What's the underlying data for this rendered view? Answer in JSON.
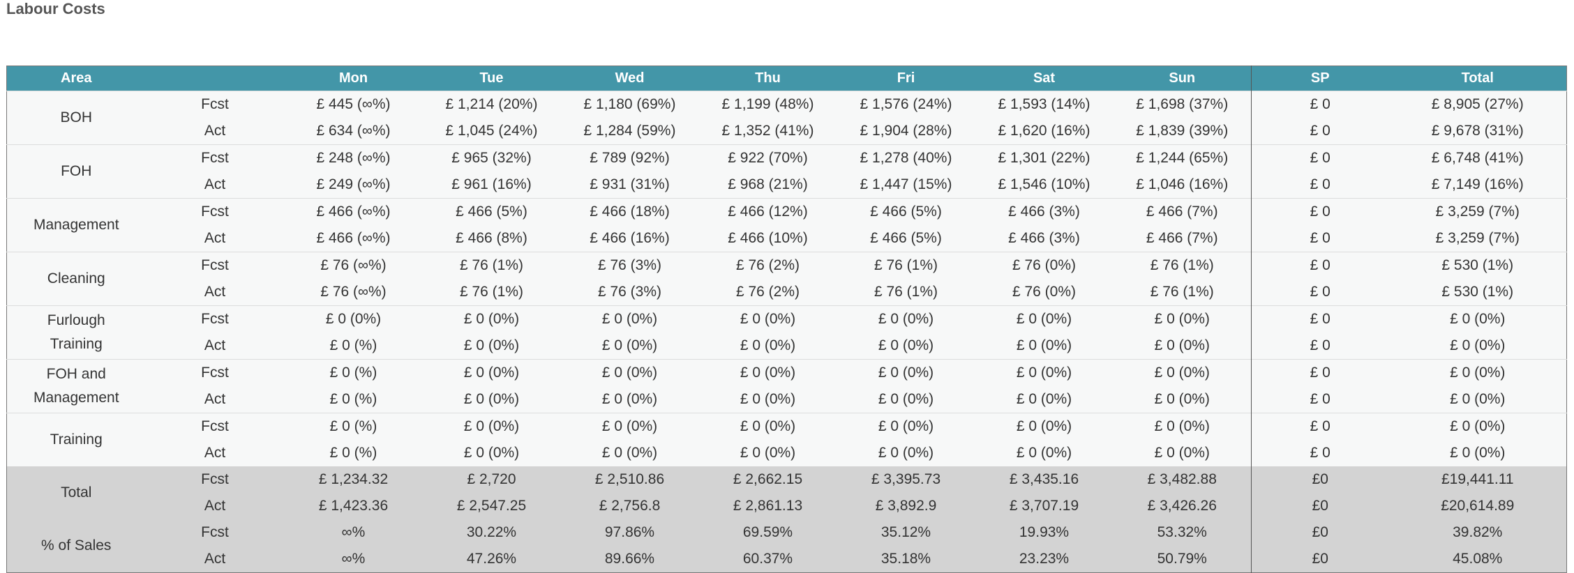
{
  "title": "Labour Costs",
  "table": {
    "header": [
      "Area",
      "Mon",
      "Tue",
      "Wed",
      "Thu",
      "Fri",
      "Sat",
      "Sun",
      "SP",
      "Total"
    ],
    "groups": [
      {
        "area": "BOH",
        "rows": [
          {
            "label": "Fcst",
            "cells": [
              "£ 445 (∞%)",
              "£ 1,214 (20%)",
              "£ 1,180 (69%)",
              "£ 1,199 (48%)",
              "£ 1,576 (24%)",
              "£ 1,593 (14%)",
              "£ 1,698 (37%)",
              "£ 0",
              "£ 8,905 (27%)"
            ]
          },
          {
            "label": "Act",
            "cells": [
              "£ 634 (∞%)",
              "£ 1,045 (24%)",
              "£ 1,284 (59%)",
              "£ 1,352 (41%)",
              "£ 1,904 (28%)",
              "£ 1,620 (16%)",
              "£ 1,839 (39%)",
              "£ 0",
              "£ 9,678 (31%)"
            ]
          }
        ]
      },
      {
        "area": "FOH",
        "rows": [
          {
            "label": "Fcst",
            "cells": [
              "£ 248 (∞%)",
              "£ 965 (32%)",
              "£ 789 (92%)",
              "£ 922 (70%)",
              "£ 1,278 (40%)",
              "£ 1,301 (22%)",
              "£ 1,244 (65%)",
              "£ 0",
              "£ 6,748 (41%)"
            ]
          },
          {
            "label": "Act",
            "cells": [
              "£ 249 (∞%)",
              "£ 961 (16%)",
              "£ 931 (31%)",
              "£ 968 (21%)",
              "£ 1,447 (15%)",
              "£ 1,546 (10%)",
              "£ 1,046 (16%)",
              "£ 0",
              "£ 7,149 (16%)"
            ]
          }
        ]
      },
      {
        "area": "Management",
        "rows": [
          {
            "label": "Fcst",
            "cells": [
              "£ 466 (∞%)",
              "£ 466 (5%)",
              "£ 466 (18%)",
              "£ 466 (12%)",
              "£ 466 (5%)",
              "£ 466 (3%)",
              "£ 466 (7%)",
              "£ 0",
              "£ 3,259 (7%)"
            ]
          },
          {
            "label": "Act",
            "cells": [
              "£ 466 (∞%)",
              "£ 466 (8%)",
              "£ 466 (16%)",
              "£ 466 (10%)",
              "£ 466 (5%)",
              "£ 466 (3%)",
              "£ 466 (7%)",
              "£ 0",
              "£ 3,259 (7%)"
            ]
          }
        ]
      },
      {
        "area": "Cleaning",
        "rows": [
          {
            "label": "Fcst",
            "cells": [
              "£ 76 (∞%)",
              "£ 76 (1%)",
              "£ 76 (3%)",
              "£ 76 (2%)",
              "£ 76 (1%)",
              "£ 76 (0%)",
              "£ 76 (1%)",
              "£ 0",
              "£ 530 (1%)"
            ]
          },
          {
            "label": "Act",
            "cells": [
              "£ 76 (∞%)",
              "£ 76 (1%)",
              "£ 76 (3%)",
              "£ 76 (2%)",
              "£ 76 (1%)",
              "£ 76 (0%)",
              "£ 76 (1%)",
              "£ 0",
              "£ 530 (1%)"
            ]
          }
        ]
      },
      {
        "area": "Furlough Training",
        "rows": [
          {
            "label": "Fcst",
            "cells": [
              "£ 0 (0%)",
              "£ 0 (0%)",
              "£ 0 (0%)",
              "£ 0 (0%)",
              "£ 0 (0%)",
              "£ 0 (0%)",
              "£ 0 (0%)",
              "£ 0",
              "£ 0 (0%)"
            ]
          },
          {
            "label": "Act",
            "cells": [
              "£ 0 (%)",
              "£ 0 (0%)",
              "£ 0 (0%)",
              "£ 0 (0%)",
              "£ 0 (0%)",
              "£ 0 (0%)",
              "£ 0 (0%)",
              "£ 0",
              "£ 0 (0%)"
            ]
          }
        ]
      },
      {
        "area": "FOH and Management",
        "rows": [
          {
            "label": "Fcst",
            "cells": [
              "£ 0 (%)",
              "£ 0 (0%)",
              "£ 0 (0%)",
              "£ 0 (0%)",
              "£ 0 (0%)",
              "£ 0 (0%)",
              "£ 0 (0%)",
              "£ 0",
              "£ 0 (0%)"
            ]
          },
          {
            "label": "Act",
            "cells": [
              "£ 0 (%)",
              "£ 0 (0%)",
              "£ 0 (0%)",
              "£ 0 (0%)",
              "£ 0 (0%)",
              "£ 0 (0%)",
              "£ 0 (0%)",
              "£ 0",
              "£ 0 (0%)"
            ]
          }
        ]
      },
      {
        "area": "Training",
        "rows": [
          {
            "label": "Fcst",
            "cells": [
              "£ 0 (%)",
              "£ 0 (0%)",
              "£ 0 (0%)",
              "£ 0 (0%)",
              "£ 0 (0%)",
              "£ 0 (0%)",
              "£ 0 (0%)",
              "£ 0",
              "£ 0 (0%)"
            ]
          },
          {
            "label": "Act",
            "cells": [
              "£ 0 (%)",
              "£ 0 (0%)",
              "£ 0 (0%)",
              "£ 0 (0%)",
              "£ 0 (0%)",
              "£ 0 (0%)",
              "£ 0 (0%)",
              "£ 0",
              "£ 0 (0%)"
            ]
          }
        ]
      }
    ],
    "summary": [
      {
        "area": "Total",
        "rows": [
          {
            "label": "Fcst",
            "cells": [
              "£ 1,234.32",
              "£ 2,720",
              "£ 2,510.86",
              "£ 2,662.15",
              "£ 3,395.73",
              "£ 3,435.16",
              "£ 3,482.88",
              "£0",
              "£19,441.11"
            ]
          },
          {
            "label": "Act",
            "cells": [
              "£ 1,423.36",
              "£ 2,547.25",
              "£ 2,756.8",
              "£ 2,861.13",
              "£ 3,892.9",
              "£ 3,707.19",
              "£ 3,426.26",
              "£0",
              "£20,614.89"
            ]
          }
        ]
      },
      {
        "area": "% of Sales",
        "rows": [
          {
            "label": "Fcst",
            "cells": [
              "∞%",
              "30.22%",
              "97.86%",
              "69.59%",
              "35.12%",
              "19.93%",
              "53.32%",
              "£0",
              "39.82%"
            ]
          },
          {
            "label": "Act",
            "cells": [
              "∞%",
              "47.26%",
              "89.66%",
              "60.37%",
              "35.18%",
              "23.23%",
              "50.79%",
              "£0",
              "45.08%"
            ]
          }
        ]
      }
    ]
  }
}
